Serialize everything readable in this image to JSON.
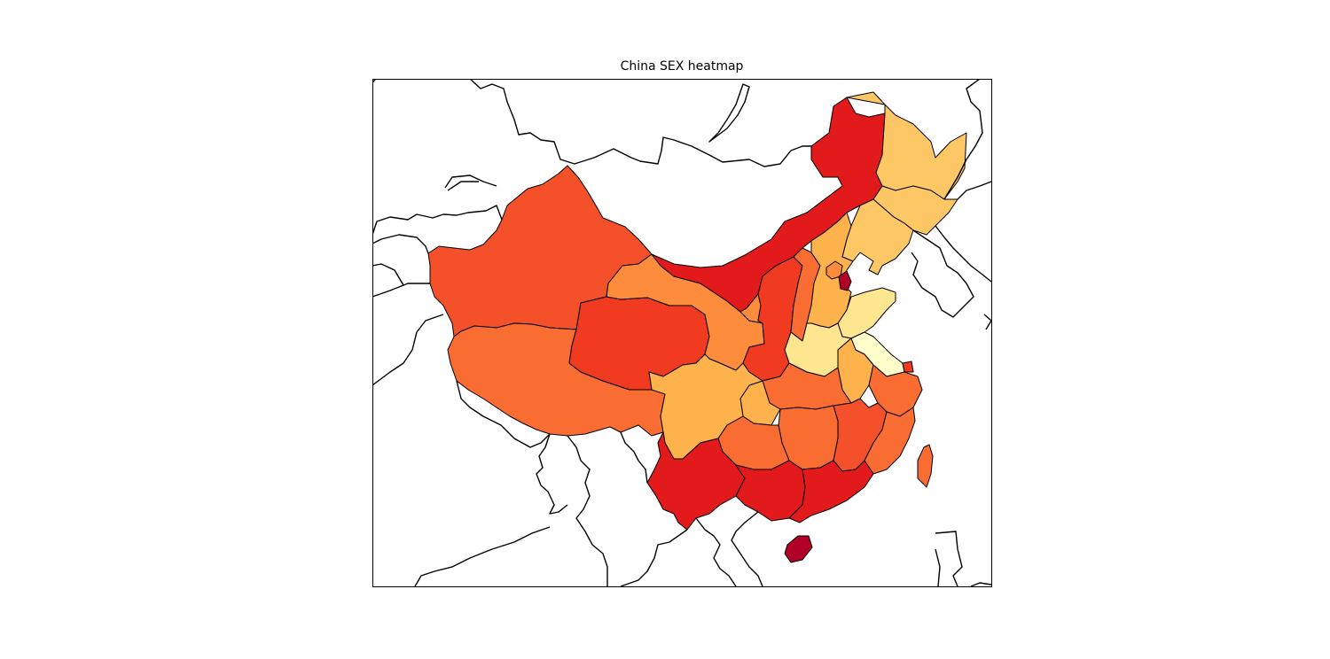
{
  "title": "China SEX heatmap",
  "colormap": "YlOrRd",
  "colors": {
    "very_dark_red": "#b10026",
    "dark_red": "#e31a1c",
    "red_orange": "#f03b20",
    "orange_red": "#f4512a",
    "orange": "#f96d33",
    "light_orange": "#fd8d3c",
    "peach": "#feb24c",
    "light_peach": "#fec766",
    "pale_yellow": "#fee690",
    "cream": "#ffffcc",
    "border": "#000000"
  },
  "regions": [
    {
      "name": "Xinjiang",
      "color": "orange_red"
    },
    {
      "name": "Tibet",
      "color": "orange"
    },
    {
      "name": "Qinghai",
      "color": "red_orange"
    },
    {
      "name": "Gansu",
      "color": "light_orange"
    },
    {
      "name": "Inner Mongolia",
      "color": "dark_red"
    },
    {
      "name": "Heilongjiang",
      "color": "light_peach"
    },
    {
      "name": "Jilin",
      "color": "light_peach"
    },
    {
      "name": "Liaoning",
      "color": "light_peach"
    },
    {
      "name": "Ningxia",
      "color": "light_orange"
    },
    {
      "name": "Shaanxi",
      "color": "red_orange"
    },
    {
      "name": "Shanxi",
      "color": "orange"
    },
    {
      "name": "Hebei",
      "color": "peach"
    },
    {
      "name": "Beijing",
      "color": "light_orange"
    },
    {
      "name": "Tianjin",
      "color": "very_dark_red"
    },
    {
      "name": "Shandong",
      "color": "pale_yellow"
    },
    {
      "name": "Henan",
      "color": "pale_yellow"
    },
    {
      "name": "Jiangsu",
      "color": "cream"
    },
    {
      "name": "Anhui",
      "color": "peach"
    },
    {
      "name": "Shanghai",
      "color": "red_orange"
    },
    {
      "name": "Zhejiang",
      "color": "orange"
    },
    {
      "name": "Hubei",
      "color": "orange"
    },
    {
      "name": "Chongqing",
      "color": "peach"
    },
    {
      "name": "Sichuan",
      "color": "peach"
    },
    {
      "name": "Hunan",
      "color": "orange"
    },
    {
      "name": "Jiangxi",
      "color": "orange_red"
    },
    {
      "name": "Fujian",
      "color": "orange"
    },
    {
      "name": "Guizhou",
      "color": "orange"
    },
    {
      "name": "Yunnan",
      "color": "dark_red"
    },
    {
      "name": "Guangxi",
      "color": "dark_red"
    },
    {
      "name": "Guangdong",
      "color": "dark_red"
    },
    {
      "name": "Hainan",
      "color": "very_dark_red"
    },
    {
      "name": "Taiwan",
      "color": "orange"
    }
  ]
}
